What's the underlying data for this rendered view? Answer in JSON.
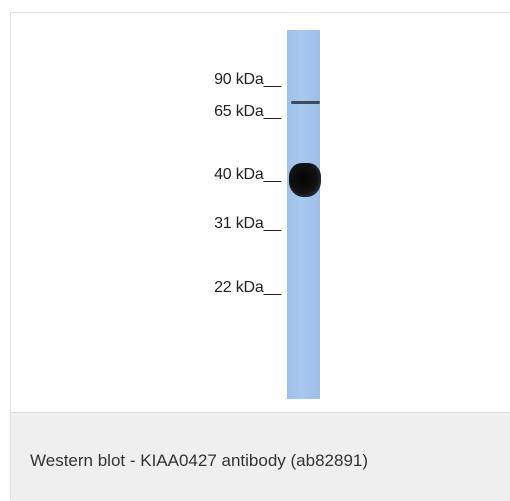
{
  "figure": {
    "markers": [
      {
        "label": "90 kDa__"
      },
      {
        "label": "65 kDa__"
      },
      {
        "label": "40 kDa__"
      },
      {
        "label": "31 kDa__"
      },
      {
        "label": "22 kDa__"
      }
    ]
  },
  "caption": {
    "text": "Western blot - KIAA0427 antibody (ab82891)"
  }
}
